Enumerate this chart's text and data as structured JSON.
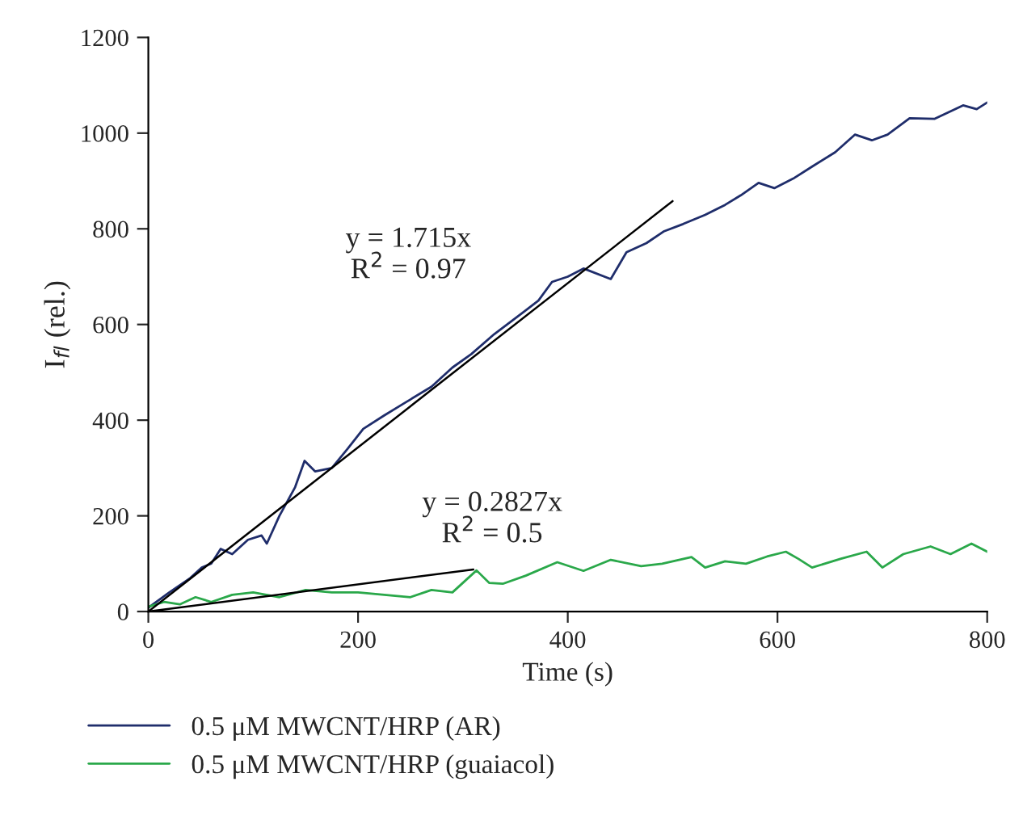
{
  "chart_data": {
    "type": "line",
    "xlabel": "Time (s)",
    "ylabel": "I$_{fl}$ (rel.)",
    "xlim": [
      0,
      800
    ],
    "ylim": [
      0,
      1200
    ],
    "xticks": [
      0,
      200,
      400,
      600,
      800
    ],
    "yticks": [
      0,
      200,
      400,
      600,
      800,
      1000,
      1200
    ],
    "grid": false,
    "legend": "bottom",
    "marker": "none",
    "line_style": "solid",
    "series": [
      {
        "name": "0.5 μM MWCNT/HRP (AR)",
        "color": "#1f2d6b",
        "x": [
          0,
          20,
          40,
          51,
          60,
          69,
          80,
          95,
          108,
          113,
          125,
          140,
          149,
          159,
          175,
          190,
          205,
          225,
          246,
          270,
          290,
          308,
          330,
          359,
          372,
          385,
          400,
          415,
          441,
          456,
          475,
          492,
          510,
          531,
          550,
          565,
          582,
          597,
          615,
          633,
          655,
          674,
          690,
          705,
          726,
          750,
          777,
          790,
          800
        ],
        "values": [
          8,
          40,
          70,
          92,
          100,
          131,
          120,
          150,
          159,
          142,
          200,
          260,
          315,
          293,
          300,
          340,
          382,
          410,
          438,
          470,
          510,
          538,
          580,
          628,
          650,
          689,
          700,
          717,
          695,
          751,
          770,
          795,
          810,
          829,
          850,
          870,
          896,
          885,
          905,
          930,
          960,
          997,
          985,
          997,
          1031,
          1030,
          1058,
          1050,
          1064
        ]
      },
      {
        "name": "0.5 μM MWCNT/HRP (guaiacol)",
        "color": "#2aa84a",
        "x": [
          0,
          15,
          30,
          45,
          60,
          80,
          100,
          125,
          150,
          175,
          200,
          225,
          250,
          270,
          290,
          313,
          325,
          338,
          360,
          390,
          415,
          441,
          470,
          490,
          518,
          531,
          550,
          570,
          590,
          608,
          620,
          633,
          660,
          685,
          700,
          720,
          746,
          765,
          785,
          800
        ],
        "values": [
          10,
          20,
          15,
          30,
          20,
          35,
          40,
          30,
          45,
          40,
          40,
          35,
          30,
          45,
          40,
          86,
          60,
          58,
          75,
          103,
          85,
          108,
          95,
          100,
          114,
          92,
          105,
          100,
          115,
          125,
          110,
          92,
          110,
          125,
          92,
          120,
          136,
          120,
          142,
          125
        ]
      },
      {
        "type": "line",
        "color": "#000000",
        "x": [
          0,
          500
        ],
        "values": [
          0,
          858
        ]
      },
      {
        "type": "line",
        "color": "#000000",
        "x": [
          0,
          310
        ],
        "values": [
          0,
          88
        ]
      }
    ],
    "annotations": [
      "y = 1.715x\nR$^{2}$ = 0.97",
      "y = 0.2827x\nR$^{2}$ = 0.5"
    ]
  }
}
